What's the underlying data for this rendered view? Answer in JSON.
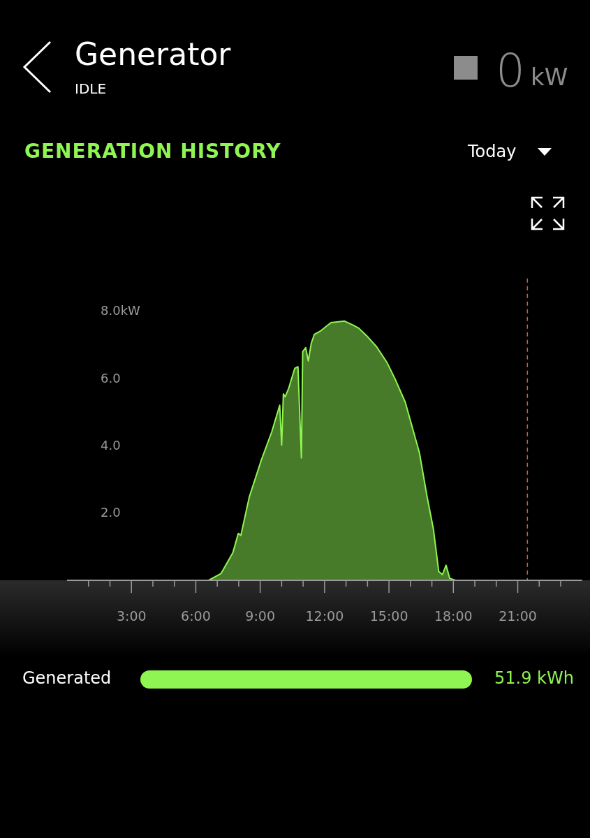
{
  "chart_data": {
    "type": "area",
    "title": "GENERATION HISTORY",
    "annotations": [
      "Generator",
      "IDLE",
      "0",
      "kW",
      "Today",
      "Generated",
      "51.9 kWh"
    ],
    "x": [
      0,
      6.6,
      7.17,
      7.73,
      7.98,
      8.1,
      8.49,
      9.06,
      9.54,
      9.91,
      10.0,
      10.08,
      10.16,
      10.33,
      10.61,
      10.76,
      10.92,
      10.98,
      11.12,
      11.24,
      11.38,
      11.52,
      11.8,
      12.09,
      12.31,
      12.37,
      12.93,
      13.3,
      13.59,
      13.95,
      14.43,
      14.92,
      15.28,
      15.76,
      16.42,
      16.78,
      17.07,
      17.32,
      17.49,
      17.66,
      17.83,
      18.1,
      21.4
    ],
    "series": [
      {
        "color": "#8ef552",
        "values": [
          0,
          0,
          0.2,
          0.83,
          1.4,
          1.34,
          2.48,
          3.6,
          4.43,
          5.22,
          4.03,
          5.56,
          5.47,
          5.73,
          6.32,
          6.37,
          3.65,
          6.82,
          6.94,
          6.54,
          7.07,
          7.33,
          7.43,
          7.58,
          7.69,
          7.69,
          7.73,
          7.62,
          7.52,
          7.3,
          6.96,
          6.48,
          6.01,
          5.31,
          3.8,
          2.48,
          1.53,
          0.26,
          0.17,
          0.45,
          0.06,
          0,
          0
        ]
      }
    ],
    "xlim": [
      0,
      24
    ],
    "xticks": [
      {
        "value": 1,
        "label": null
      },
      {
        "value": 2,
        "label": null
      },
      {
        "value": 3,
        "label": "3:00"
      },
      {
        "value": 4,
        "label": null
      },
      {
        "value": 5,
        "label": null
      },
      {
        "value": 6,
        "label": "6:00"
      },
      {
        "value": 7,
        "label": null
      },
      {
        "value": 8,
        "label": null
      },
      {
        "value": 9,
        "label": "9:00"
      },
      {
        "value": 10,
        "label": null
      },
      {
        "value": 11,
        "label": null
      },
      {
        "value": 12,
        "label": "12:00"
      },
      {
        "value": 13,
        "label": null
      },
      {
        "value": 14,
        "label": null
      },
      {
        "value": 15,
        "label": "15:00"
      },
      {
        "value": 16,
        "label": null
      },
      {
        "value": 17,
        "label": null
      },
      {
        "value": 18,
        "label": "18:00"
      },
      {
        "value": 19,
        "label": null
      },
      {
        "value": 20,
        "label": null
      },
      {
        "value": 21,
        "label": "21:00"
      },
      {
        "value": 22,
        "label": null
      },
      {
        "value": 23,
        "label": null
      }
    ],
    "ylim": [
      0,
      9
    ],
    "yticks": [
      {
        "value": 2,
        "label": "2.0"
      },
      {
        "value": 4,
        "label": "4.0"
      },
      {
        "value": 6,
        "label": "6.0"
      },
      {
        "value": 8,
        "label": "8.0kW"
      }
    ],
    "ref_lines": [
      {
        "axis": "x",
        "value": 21.45,
        "color": "#e0553f",
        "line_style": "dashed"
      }
    ],
    "grid": false,
    "legend": false,
    "marker": "none"
  }
}
